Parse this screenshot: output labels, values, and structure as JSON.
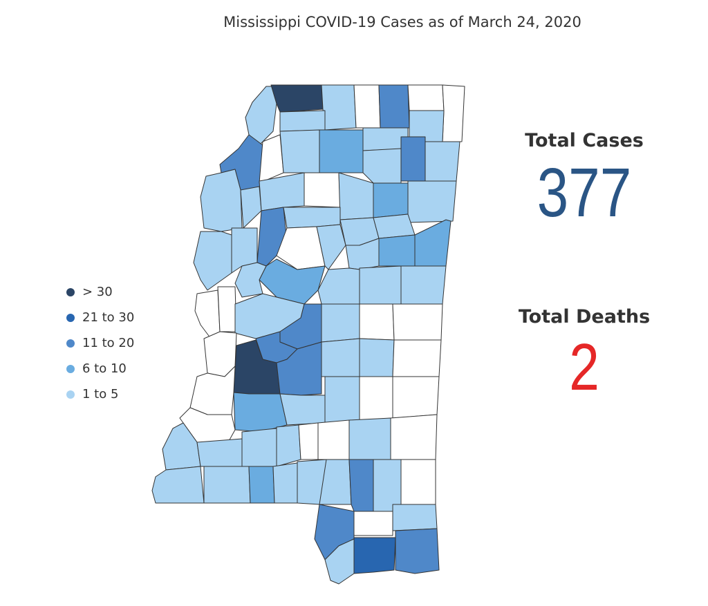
{
  "title": "Mississippi COVID-19 Cases as of March 24, 2020",
  "colors": {
    "c0": "#ffffff",
    "c1": "#a9d3f2",
    "c2": "#6aace0",
    "c3": "#4f88c9",
    "c4": "#2866b0",
    "c5": "#2b4566",
    "border": "#333333",
    "cases": "#2a5585",
    "deaths": "#e52727"
  },
  "legend": [
    {
      "label": "> 30",
      "color": "#2b4566"
    },
    {
      "label": "21 to 30",
      "color": "#2866b0"
    },
    {
      "label": "11 to 20",
      "color": "#4f88c9"
    },
    {
      "label": "6 to 10",
      "color": "#6aace0"
    },
    {
      "label": "1 to 5",
      "color": "#a9d3f2"
    }
  ],
  "stats": {
    "cases_label": "Total Cases",
    "cases_value": "377",
    "deaths_label": "Total Deaths",
    "deaths_value": "2"
  }
}
